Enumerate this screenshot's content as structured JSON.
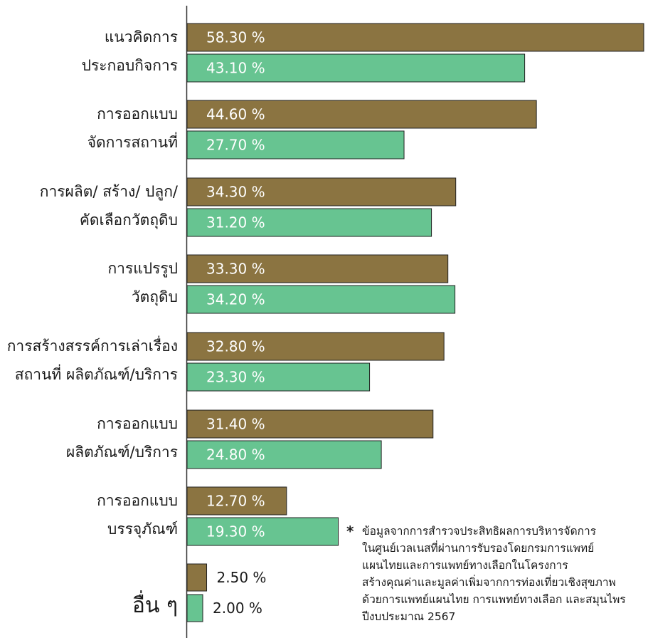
{
  "chart_data": {
    "type": "bar",
    "orientation": "horizontal",
    "categories": [
      [
        "แนวคิดการ",
        "ประกอบกิจการ"
      ],
      [
        "การออกแบบ",
        "จัดการสถานที่"
      ],
      [
        "การผลิต/ สร้าง/ ปลูก/",
        "คัดเลือกวัตถุดิบ"
      ],
      [
        "การแปรรูป",
        "วัตถุดิบ"
      ],
      [
        "การสร้างสรรค์การเล่าเรื่อง",
        "สถานที่ ผลิตภัณฑ์/บริการ"
      ],
      [
        "การออกแบบ",
        "ผลิตภัณฑ์/บริการ"
      ],
      [
        "การออกแบบ",
        "บรรจุภัณฑ์"
      ],
      [
        "อื่น ๆ"
      ]
    ],
    "series": [
      {
        "color": "#8b7441",
        "values": [
          58.3,
          44.6,
          34.3,
          33.3,
          32.8,
          31.4,
          12.7,
          2.5
        ],
        "labels": [
          "58.30 %",
          "44.60 %",
          "34.30 %",
          "33.30 %",
          "32.80 %",
          "31.40 %",
          "12.70 %",
          "2.50 %"
        ]
      },
      {
        "color": "#67c491",
        "values": [
          43.1,
          27.7,
          31.2,
          34.2,
          23.3,
          24.8,
          19.3,
          2.0
        ],
        "labels": [
          "43.10 %",
          "27.70 %",
          "31.20 %",
          "34.20 %",
          "23.30 %",
          "24.80 %",
          "19.30 %",
          "2.00 %"
        ]
      }
    ],
    "xlim": [
      0,
      60
    ],
    "title": "",
    "xlabel": "",
    "ylabel": "",
    "grid": false,
    "legend": "none"
  },
  "footnote": {
    "star": "*",
    "lines": [
      "ข้อมูลจากการสำรวจประสิทธิผลการบริหารจัดการ",
      "ในศูนย์เวลเนสที่ผ่านการรับรองโดยกรมการแพทย์",
      "แผนไทยและการแพทย์ทางเลือกในโครงการ",
      "สร้างคุณค่าและมูลค่าเพิ่มจากการท่องเที่ยวเชิงสุขภาพ",
      "ด้วยการแพทย์แผนไทย การแพทย์ทางเลือก และสมุนไพร",
      "ปีงบประมาณ 2567"
    ]
  }
}
